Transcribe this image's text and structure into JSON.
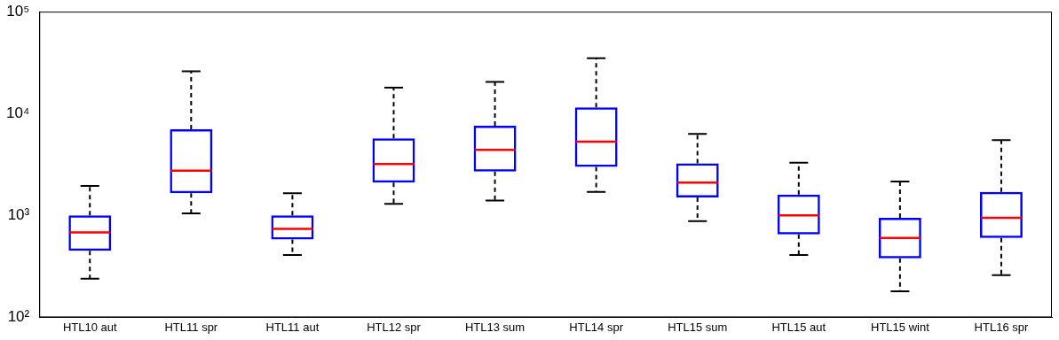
{
  "chart_data": {
    "type": "boxplot",
    "categories": [
      "HTL10 aut",
      "HTL11 spr",
      "HTL11 aut",
      "HTL12 spr",
      "HTL13 sum",
      "HTL14 spr",
      "HTL15 sum",
      "HTL15 aut",
      "HTL15 wint",
      "HTL16 spr"
    ],
    "min": [
      240,
      1050,
      410,
      1300,
      1400,
      1700,
      880,
      410,
      180,
      260
    ],
    "q1": [
      450,
      1650,
      580,
      2100,
      2700,
      3000,
      1500,
      650,
      380,
      600
    ],
    "median": [
      680,
      2750,
      740,
      3200,
      4400,
      5300,
      2100,
      1000,
      600,
      950
    ],
    "q3": [
      1000,
      7000,
      1000,
      5700,
      7600,
      11500,
      3250,
      1600,
      950,
      1700
    ],
    "max": [
      1950,
      26000,
      1650,
      18000,
      20500,
      35000,
      6300,
      3300,
      2150,
      5500
    ],
    "color": "#0000ff",
    "log": "y",
    "ylim": [
      100,
      100000
    ],
    "yticks": [
      {
        "value": 100,
        "label": "10²"
      },
      {
        "value": 1000,
        "label": "10³"
      },
      {
        "value": 10000,
        "label": "10⁴"
      },
      {
        "value": 100000,
        "label": "10⁵"
      }
    ],
    "grid": false
  }
}
